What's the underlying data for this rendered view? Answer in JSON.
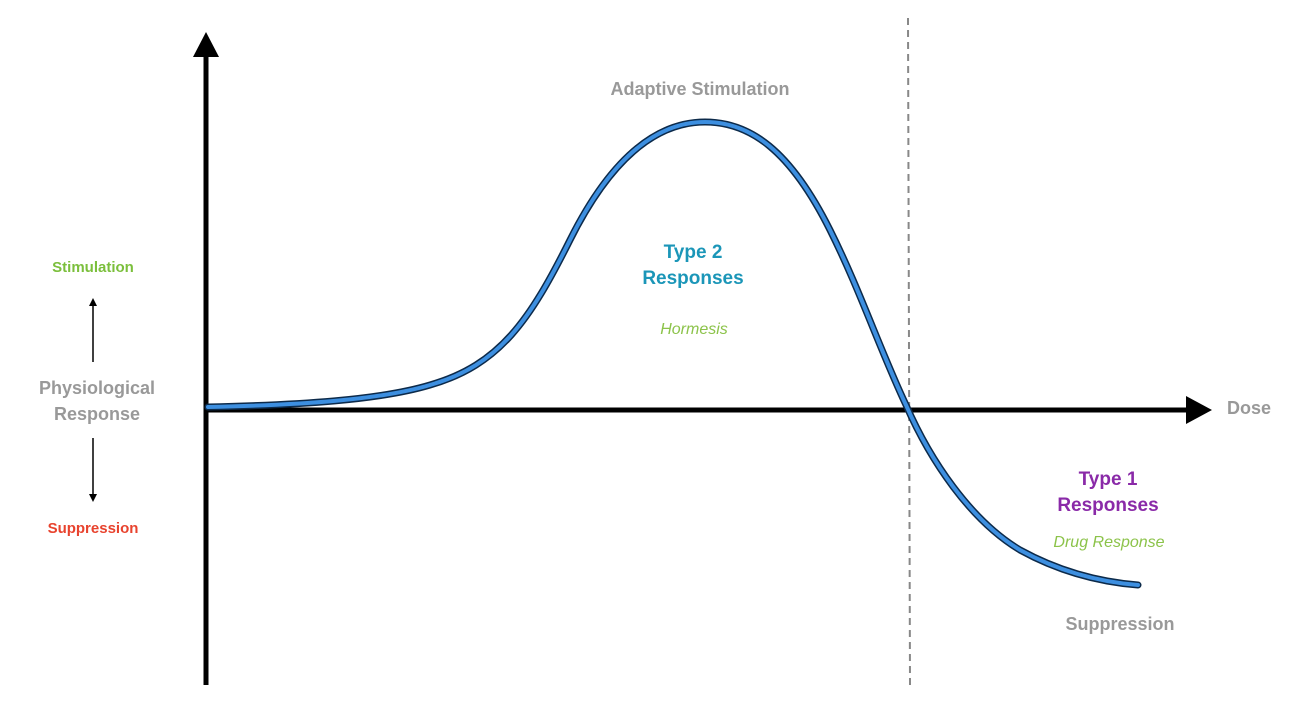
{
  "axes": {
    "y_label": [
      "Physiological",
      "Response"
    ],
    "x_label": "Dose",
    "up_label": "Stimulation",
    "down_label": "Suppression"
  },
  "annotations": {
    "peak": "Adaptive Stimulation",
    "trough": "Suppression"
  },
  "regions": [
    {
      "title": [
        "Type 2",
        "Responses"
      ],
      "subtitle": "Hormesis"
    },
    {
      "title": [
        "Type 1",
        "Responses"
      ],
      "subtitle": "Drug Response"
    }
  ]
}
